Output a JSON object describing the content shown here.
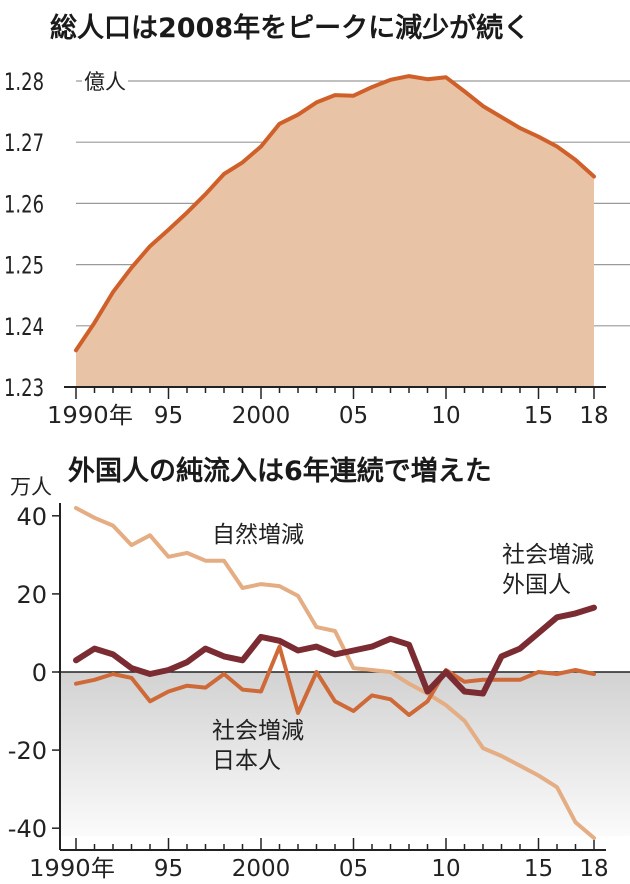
{
  "chart_data": [
    {
      "type": "area",
      "title": "総人口は2008年をピークに減少が続く",
      "unit_label": "億人",
      "ylim": [
        1.23,
        1.28
      ],
      "yticks": [
        1.23,
        1.24,
        1.25,
        1.26,
        1.27,
        1.28
      ],
      "ytick_labels": [
        "1.23",
        "1.24",
        "1.25",
        "1.26",
        "1.27",
        "1.28"
      ],
      "xlim": [
        1990,
        2018
      ],
      "xticks": [
        1990,
        1995,
        2000,
        2005,
        2010,
        2015,
        2018
      ],
      "xtick_labels": [
        "1990年",
        "95",
        "2000",
        "05",
        "10",
        "15",
        "18"
      ],
      "grid": true,
      "colors": {
        "line": "#d0602a",
        "fill": "#e9c3a5"
      },
      "series": [
        {
          "name": "",
          "x": [
            1990,
            1991,
            1992,
            1993,
            1994,
            1995,
            1996,
            1997,
            1998,
            1999,
            2000,
            2001,
            2002,
            2003,
            2004,
            2005,
            2006,
            2007,
            2008,
            2009,
            2010,
            2011,
            2012,
            2013,
            2014,
            2015,
            2016,
            2017,
            2018
          ],
          "values": [
            1.236,
            1.2405,
            1.2455,
            1.2495,
            1.253,
            1.2557,
            1.2585,
            1.2615,
            1.2648,
            1.2667,
            1.2693,
            1.273,
            1.2745,
            1.2765,
            1.2777,
            1.2776,
            1.279,
            1.2802,
            1.2808,
            1.2803,
            1.2806,
            1.2783,
            1.2759,
            1.2741,
            1.2723,
            1.2709,
            1.2693,
            1.2671,
            1.2644
          ]
        }
      ]
    },
    {
      "type": "line",
      "title": "外国人の純流入は6年連続で増えた",
      "unit_label": "万人",
      "ylim": [
        -42,
        42
      ],
      "yticks": [
        40,
        20,
        0,
        -20,
        -40
      ],
      "ytick_labels": [
        "40",
        "20",
        "0",
        "-20",
        "-40"
      ],
      "xlim": [
        1990,
        2018
      ],
      "xticks": [
        1990,
        1995,
        2000,
        2005,
        2010,
        2015,
        2018
      ],
      "xtick_labels": [
        "1990年",
        "95",
        "2000",
        "05",
        "10",
        "15",
        "18"
      ],
      "grid": false,
      "x": [
        1990,
        1991,
        1992,
        1993,
        1994,
        1995,
        1996,
        1997,
        1998,
        1999,
        2000,
        2001,
        2002,
        2003,
        2004,
        2005,
        2006,
        2007,
        2008,
        2009,
        2010,
        2011,
        2012,
        2013,
        2014,
        2015,
        2016,
        2017,
        2018
      ],
      "series": [
        {
          "name": "自然増減",
          "color": "#e4ad83",
          "values": [
            42,
            39.5,
            37.5,
            32.5,
            35,
            29.5,
            30.5,
            28.5,
            28.5,
            21.5,
            22.5,
            22,
            19.5,
            11.5,
            10.5,
            1,
            0.5,
            0,
            -3,
            -5.5,
            -8.5,
            -12.5,
            -19.5,
            -21.5,
            -24,
            -26.5,
            -29.5,
            -38.5,
            -42.5
          ]
        },
        {
          "name": "社会増減 外国人",
          "color": "#7b2c33",
          "values": [
            3,
            6,
            4.5,
            1,
            -0.5,
            0.5,
            2.5,
            6,
            4,
            3,
            9,
            8,
            5.5,
            6.5,
            4.5,
            5.5,
            6.5,
            8.5,
            7,
            -5,
            0,
            -5,
            -5.5,
            4,
            6,
            10,
            14,
            15,
            16.5
          ]
        },
        {
          "name": "社会増減 日本人",
          "color": "#cf6a38",
          "values": [
            -3,
            -2,
            -0.5,
            -1.5,
            -7.5,
            -5,
            -3.5,
            -4,
            -0.5,
            -4.5,
            -5,
            6.5,
            -10.5,
            0,
            -7.5,
            -10,
            -6,
            -7,
            -11,
            -7.5,
            0.5,
            -2.5,
            -2,
            -2,
            -2,
            0,
            -0.5,
            0.5,
            -0.5
          ]
        }
      ]
    }
  ]
}
